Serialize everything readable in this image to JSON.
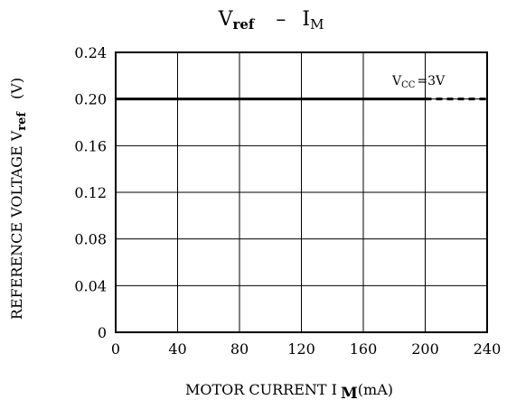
{
  "chart_data": {
    "type": "line",
    "title": {
      "v": "V",
      "v_sub": "ref",
      "dash": "–",
      "i": "I",
      "i_sub": "M"
    },
    "xlabel": {
      "text": "MOTOR CURRENT I",
      "sub": "M",
      "unit": "(mA)"
    },
    "ylabel": {
      "text": "REFERENCE VOLTAGE V",
      "sub": "ref",
      "unit": "(V)"
    },
    "x_ticks": [
      "0",
      "40",
      "80",
      "120",
      "160",
      "200",
      "240"
    ],
    "y_ticks": [
      "0",
      "0.04",
      "0.08",
      "0.12",
      "0.16",
      "0.20",
      "0.24"
    ],
    "xlim": [
      0,
      240
    ],
    "ylim": [
      0,
      0.24
    ],
    "grid": true,
    "annotation": {
      "prefix": "V",
      "sub": "CC",
      "suffix": "=3V"
    },
    "series": [
      {
        "x": [
          0,
          200
        ],
        "y": [
          0.2,
          0.2
        ],
        "style": "solid"
      },
      {
        "x": [
          200,
          240
        ],
        "y": [
          0.2,
          0.2
        ],
        "style": "dashed"
      }
    ]
  }
}
